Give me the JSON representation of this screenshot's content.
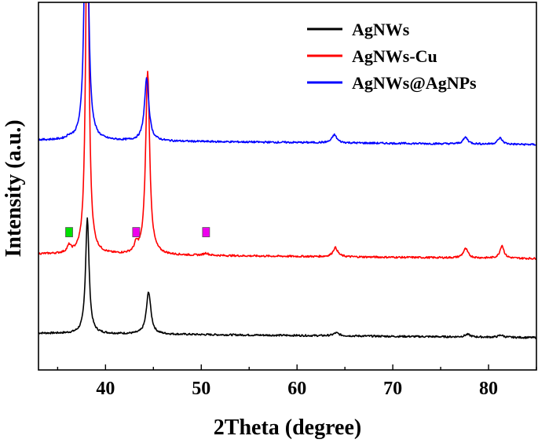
{
  "chart_data": {
    "type": "line",
    "title": "",
    "xlabel": "2Theta (degree)",
    "ylabel": "Intensity (a.u.)",
    "xlim": [
      33,
      85
    ],
    "xticks": [
      40,
      50,
      60,
      70,
      80
    ],
    "yticks_shown": false,
    "grid": false,
    "legend_position": "top-right",
    "offset_stacked": true,
    "series": [
      {
        "name": "AgNWs",
        "color": "#000000",
        "baseline": 0.1,
        "peaks": [
          [
            38.1,
            0.315,
            0.22
          ],
          [
            44.5,
            0.115,
            0.28
          ],
          [
            64.1,
            0.008,
            0.35
          ],
          [
            77.8,
            0.007,
            0.35
          ],
          [
            81.3,
            0.006,
            0.3
          ]
        ]
      },
      {
        "name": "AgNWs-Cu",
        "color": "#ff0000",
        "baseline": 0.315,
        "peaks": [
          [
            36.2,
            0.018,
            0.22
          ],
          [
            38.1,
            1.0,
            0.2
          ],
          [
            43.2,
            0.022,
            0.22
          ],
          [
            44.4,
            0.5,
            0.25
          ],
          [
            50.5,
            0.006,
            0.3
          ],
          [
            64.0,
            0.025,
            0.3
          ],
          [
            77.6,
            0.025,
            0.3
          ],
          [
            81.4,
            0.035,
            0.25
          ]
        ]
      },
      {
        "name": "AgNWs@AgNPs",
        "color": "#0000ff",
        "baseline": 0.625,
        "peaks": [
          [
            36.2,
            0.006,
            0.3
          ],
          [
            38.0,
            1.0,
            0.2
          ],
          [
            44.3,
            0.17,
            0.28
          ],
          [
            63.9,
            0.022,
            0.3
          ],
          [
            77.6,
            0.018,
            0.3
          ],
          [
            81.2,
            0.017,
            0.3
          ]
        ]
      }
    ],
    "markers": [
      {
        "x": 36.2,
        "color": "#00e000"
      },
      {
        "x": 43.2,
        "color": "#ee00ee"
      },
      {
        "x": 50.5,
        "color": "#ee00ee"
      }
    ]
  }
}
